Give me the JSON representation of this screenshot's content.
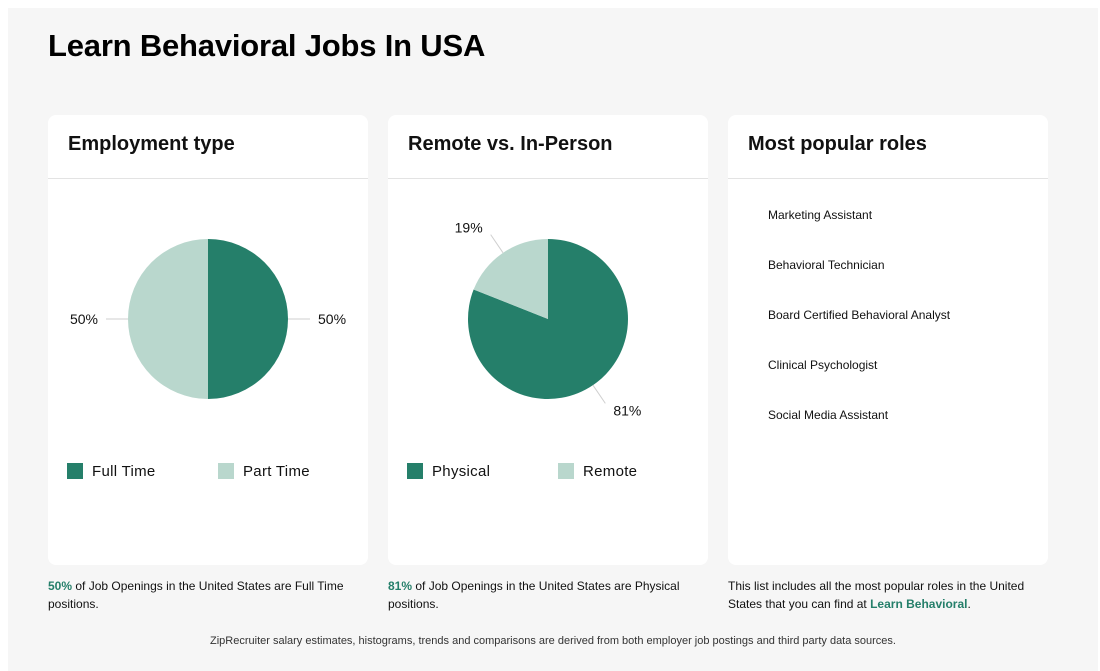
{
  "page_title": "Learn Behavioral Jobs In USA",
  "colors": {
    "primary": "#257f6a",
    "secondary": "#b9d7cd"
  },
  "employment": {
    "title": "Employment type",
    "chart_data": {
      "type": "pie",
      "slices": [
        {
          "name": "Full Time",
          "value": 50,
          "label": "50%"
        },
        {
          "name": "Part Time",
          "value": 50,
          "label": "50%"
        }
      ]
    },
    "legend": [
      "Full Time",
      "Part Time"
    ],
    "caption_value": "50%",
    "caption_text": " of Job Openings in the United States are Full Time positions."
  },
  "remote": {
    "title": "Remote vs. In-Person",
    "chart_data": {
      "type": "pie",
      "slices": [
        {
          "name": "Physical",
          "value": 81,
          "label": "81%"
        },
        {
          "name": "Remote",
          "value": 19,
          "label": "19%"
        }
      ]
    },
    "legend": [
      "Physical",
      "Remote"
    ],
    "caption_value": "81%",
    "caption_text": " of Job Openings in the United States are Physical positions."
  },
  "roles": {
    "title": "Most popular roles",
    "items": [
      "Marketing Assistant",
      "Behavioral Technician",
      "Board Certified Behavioral Analyst",
      "Clinical Psychologist",
      "Social Media Assistant"
    ],
    "caption_text": "This list includes all the most popular roles in the United States that you can find at ",
    "caption_link": "Learn Behavioral",
    "caption_end": "."
  },
  "footer": "ZipRecruiter salary estimates, histograms, trends and comparisons are derived from both employer job postings and third party data sources."
}
